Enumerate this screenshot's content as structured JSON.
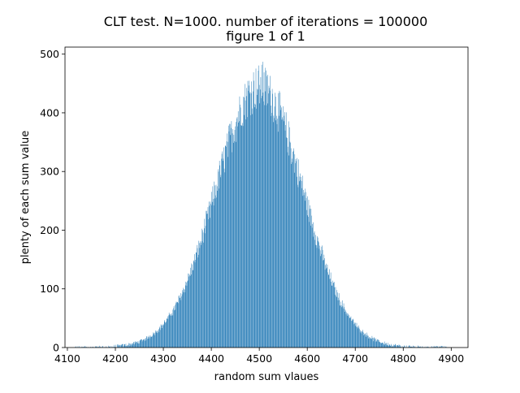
{
  "chart_data": {
    "type": "bar",
    "title": "CLT test. N=1000. number of iterations = 100000",
    "subtitle": "figure 1 of 1",
    "xlabel": "random sum vlaues",
    "ylabel": "plenty of each sum value",
    "xlim": [
      4095,
      4935
    ],
    "ylim": [
      0,
      512
    ],
    "x_ticks": [
      4100,
      4200,
      4300,
      4400,
      4500,
      4600,
      4700,
      4800,
      4900
    ],
    "y_ticks": [
      0,
      100,
      200,
      300,
      400,
      500
    ],
    "bar_color": "#1f77b4",
    "grid": false,
    "distribution_summary": {
      "mean": 4500,
      "std_dev": 91,
      "peak_count": 487,
      "peak_x": 4507,
      "x_min": 4115,
      "x_max": 4890
    }
  }
}
